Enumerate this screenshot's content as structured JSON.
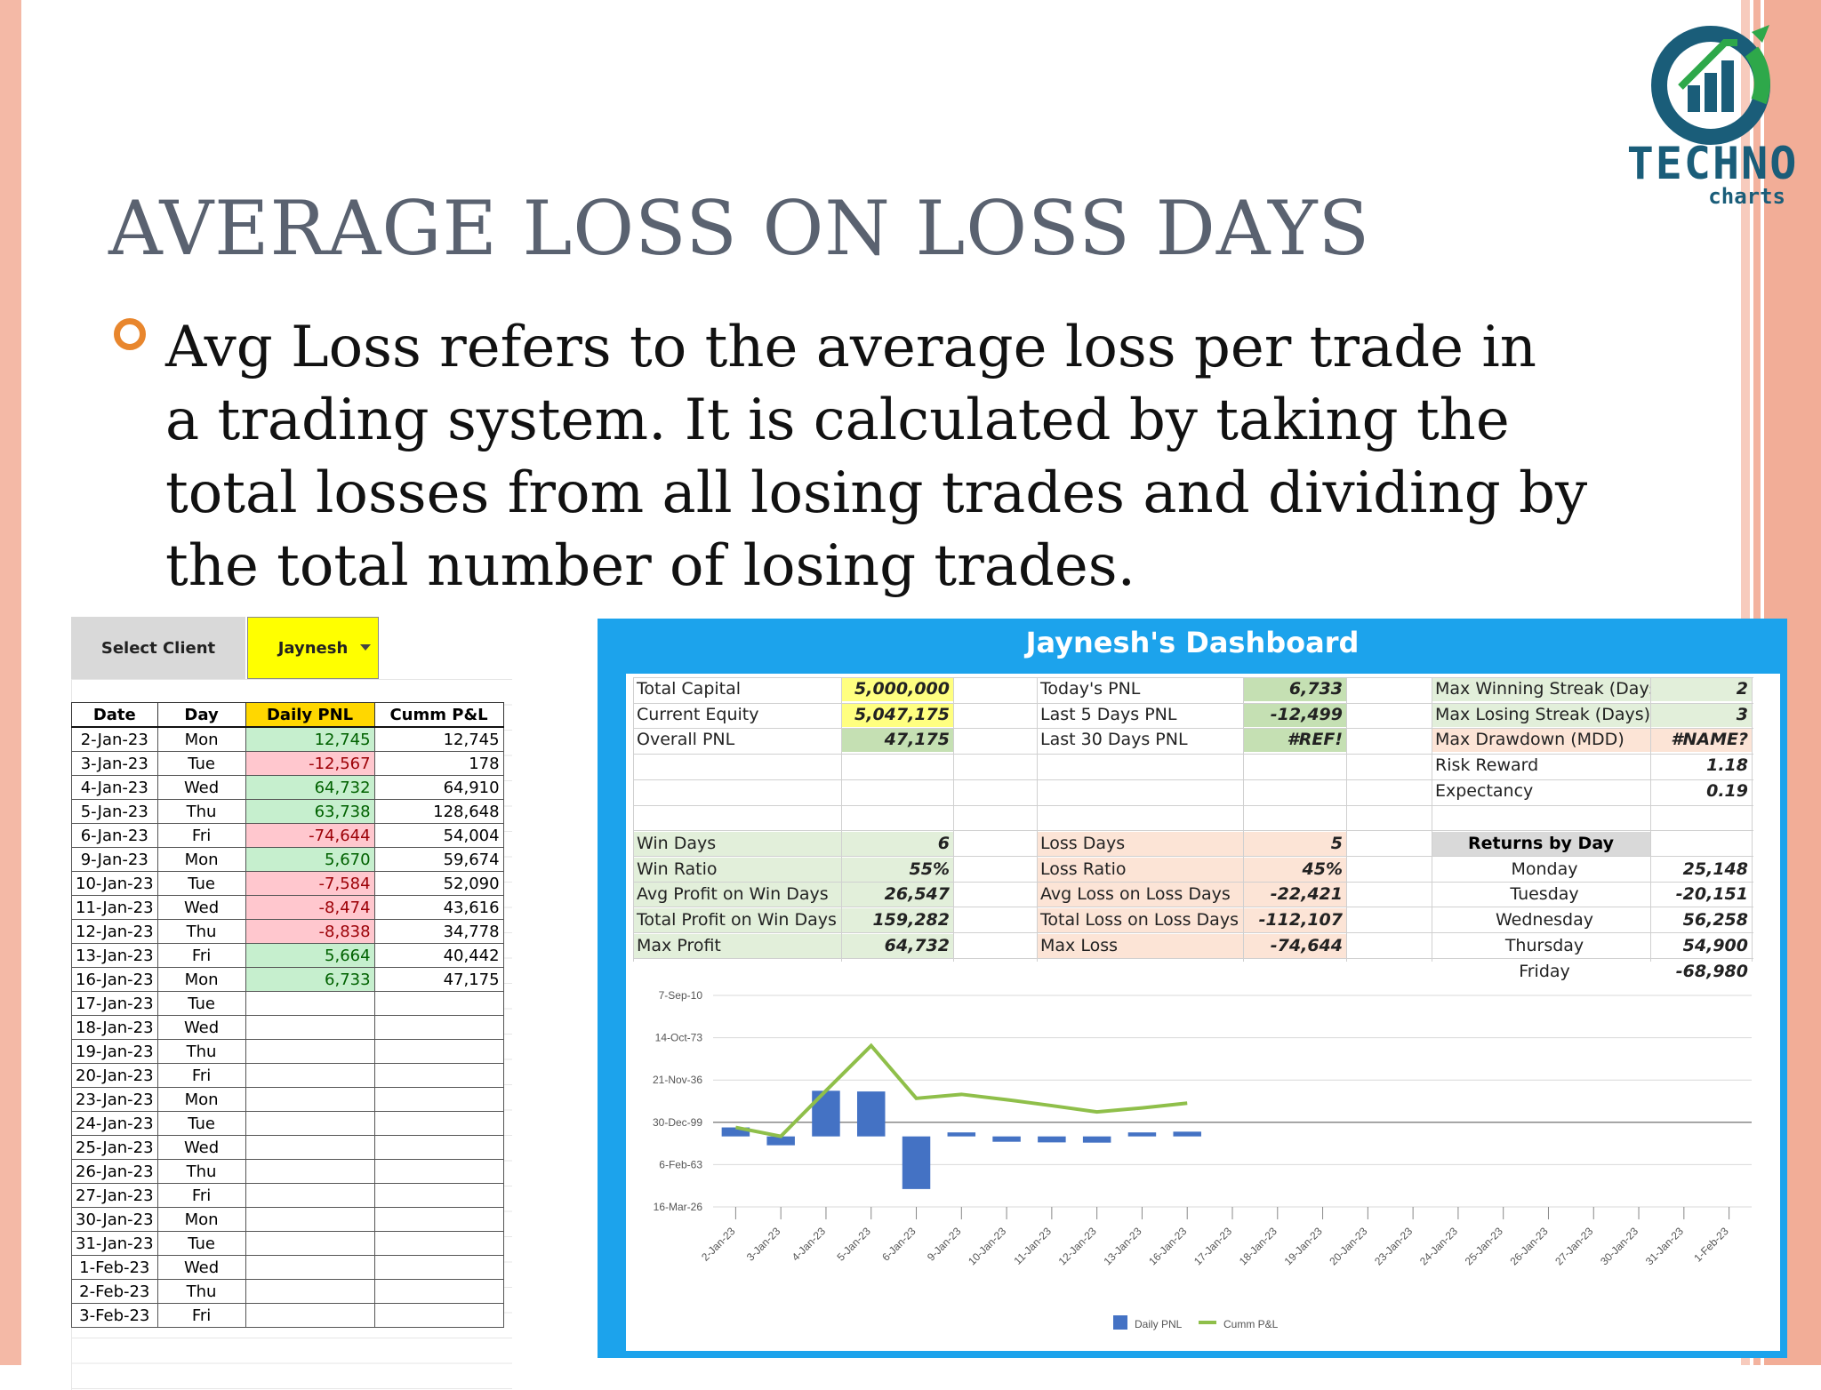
{
  "slide": {
    "title": "AVERAGE LOSS ON LOSS DAYS",
    "body": "Avg Loss refers to the average loss per trade in a trading system. It is calculated by taking the total losses from all losing trades and dividing by the total number of losing trades."
  },
  "logo": {
    "main": "TECHNO",
    "sub": "charts"
  },
  "sheet": {
    "select_label": "Select Client",
    "select_value": "Jaynesh",
    "headers": [
      "Date",
      "Day",
      "Daily PNL",
      "Cumm P&L"
    ],
    "rows": [
      {
        "date": "2-Jan-23",
        "day": "Mon",
        "pnl": "12,745",
        "cum": "12,745",
        "sign": "pos"
      },
      {
        "date": "3-Jan-23",
        "day": "Tue",
        "pnl": "-12,567",
        "cum": "178",
        "sign": "neg"
      },
      {
        "date": "4-Jan-23",
        "day": "Wed",
        "pnl": "64,732",
        "cum": "64,910",
        "sign": "pos"
      },
      {
        "date": "5-Jan-23",
        "day": "Thu",
        "pnl": "63,738",
        "cum": "128,648",
        "sign": "pos"
      },
      {
        "date": "6-Jan-23",
        "day": "Fri",
        "pnl": "-74,644",
        "cum": "54,004",
        "sign": "neg"
      },
      {
        "date": "9-Jan-23",
        "day": "Mon",
        "pnl": "5,670",
        "cum": "59,674",
        "sign": "pos"
      },
      {
        "date": "10-Jan-23",
        "day": "Tue",
        "pnl": "-7,584",
        "cum": "52,090",
        "sign": "neg"
      },
      {
        "date": "11-Jan-23",
        "day": "Wed",
        "pnl": "-8,474",
        "cum": "43,616",
        "sign": "neg"
      },
      {
        "date": "12-Jan-23",
        "day": "Thu",
        "pnl": "-8,838",
        "cum": "34,778",
        "sign": "neg"
      },
      {
        "date": "13-Jan-23",
        "day": "Fri",
        "pnl": "5,664",
        "cum": "40,442",
        "sign": "pos"
      },
      {
        "date": "16-Jan-23",
        "day": "Mon",
        "pnl": "6,733",
        "cum": "47,175",
        "sign": "pos"
      },
      {
        "date": "17-Jan-23",
        "day": "Tue",
        "pnl": "",
        "cum": "",
        "sign": ""
      },
      {
        "date": "18-Jan-23",
        "day": "Wed",
        "pnl": "",
        "cum": "",
        "sign": ""
      },
      {
        "date": "19-Jan-23",
        "day": "Thu",
        "pnl": "",
        "cum": "",
        "sign": ""
      },
      {
        "date": "20-Jan-23",
        "day": "Fri",
        "pnl": "",
        "cum": "",
        "sign": ""
      },
      {
        "date": "23-Jan-23",
        "day": "Mon",
        "pnl": "",
        "cum": "",
        "sign": ""
      },
      {
        "date": "24-Jan-23",
        "day": "Tue",
        "pnl": "",
        "cum": "",
        "sign": ""
      },
      {
        "date": "25-Jan-23",
        "day": "Wed",
        "pnl": "",
        "cum": "",
        "sign": ""
      },
      {
        "date": "26-Jan-23",
        "day": "Thu",
        "pnl": "",
        "cum": "",
        "sign": ""
      },
      {
        "date": "27-Jan-23",
        "day": "Fri",
        "pnl": "",
        "cum": "",
        "sign": ""
      },
      {
        "date": "30-Jan-23",
        "day": "Mon",
        "pnl": "",
        "cum": "",
        "sign": ""
      },
      {
        "date": "31-Jan-23",
        "day": "Tue",
        "pnl": "",
        "cum": "",
        "sign": ""
      },
      {
        "date": "1-Feb-23",
        "day": "Wed",
        "pnl": "",
        "cum": "",
        "sign": ""
      },
      {
        "date": "2-Feb-23",
        "day": "Thu",
        "pnl": "",
        "cum": "",
        "sign": ""
      },
      {
        "date": "3-Feb-23",
        "day": "Fri",
        "pnl": "",
        "cum": "",
        "sign": ""
      }
    ]
  },
  "dashboard": {
    "title": "Jaynesh's Dashboard",
    "col1": [
      {
        "k": "Total Capital",
        "v": "5,000,000",
        "bg": "yellow"
      },
      {
        "k": "Current Equity",
        "v": "5,047,175",
        "bg": "yellow"
      },
      {
        "k": "Overall PNL",
        "v": "47,175",
        "bg": "green"
      }
    ],
    "col1b": [
      {
        "k": "Win Days",
        "v": "6"
      },
      {
        "k": "Win Ratio",
        "v": "55%"
      },
      {
        "k": "Avg Profit on Win Days",
        "v": "26,547"
      },
      {
        "k": "Total Profit on Win Days",
        "v": "159,282"
      },
      {
        "k": "Max Profit",
        "v": "64,732"
      }
    ],
    "col2": [
      {
        "k": "Today's PNL",
        "v": "6,733",
        "bg": "green"
      },
      {
        "k": "Last 5 Days PNL",
        "v": "-12,499",
        "bg": "green"
      },
      {
        "k": "Last 30 Days PNL",
        "v": "#REF!",
        "bg": "green"
      }
    ],
    "col2b": [
      {
        "k": "Loss Days",
        "v": "5"
      },
      {
        "k": "Loss Ratio",
        "v": "45%"
      },
      {
        "k": "Avg Loss on Loss Days",
        "v": "-22,421"
      },
      {
        "k": "Total Loss on Loss Days",
        "v": "-112,107"
      },
      {
        "k": "Max Loss",
        "v": "-74,644"
      }
    ],
    "col3": [
      {
        "k": "Max Winning Streak (Days)",
        "v": "2",
        "bg": "lgreen"
      },
      {
        "k": "Max Losing Streak (Days)",
        "v": "3",
        "bg": "lgreen"
      },
      {
        "k": "Max Drawdown (MDD)",
        "v": "#NAME?",
        "bg": "peach"
      },
      {
        "k": "Risk Reward",
        "v": "1.18",
        "bg": ""
      },
      {
        "k": "Expectancy",
        "v": "0.19",
        "bg": ""
      }
    ],
    "returns_header": "Returns by Day",
    "returns": [
      {
        "k": "Monday",
        "v": "25,148"
      },
      {
        "k": "Tuesday",
        "v": "-20,151"
      },
      {
        "k": "Wednesday",
        "v": "56,258"
      },
      {
        "k": "Thursday",
        "v": "54,900"
      },
      {
        "k": "Friday",
        "v": "-68,980"
      }
    ]
  },
  "chart_data": {
    "type": "bar",
    "title": "",
    "y_tick_labels": [
      "7-Sep-10",
      "14-Oct-73",
      "21-Nov-36",
      "30-Dec-99",
      "6-Feb-63",
      "16-Mar-26"
    ],
    "ylim": [
      -100000,
      200000
    ],
    "categories": [
      "2-Jan-23",
      "3-Jan-23",
      "4-Jan-23",
      "5-Jan-23",
      "6-Jan-23",
      "9-Jan-23",
      "10-Jan-23",
      "11-Jan-23",
      "12-Jan-23",
      "13-Jan-23",
      "16-Jan-23",
      "17-Jan-23",
      "18-Jan-23",
      "19-Jan-23",
      "20-Jan-23",
      "23-Jan-23",
      "24-Jan-23",
      "25-Jan-23",
      "26-Jan-23",
      "27-Jan-23",
      "30-Jan-23",
      "31-Jan-23",
      "1-Feb-23"
    ],
    "series": [
      {
        "name": "Daily PNL",
        "type": "bar",
        "color": "#4472c4",
        "values": [
          12745,
          -12567,
          64732,
          63738,
          -74644,
          5670,
          -7584,
          -8474,
          -8838,
          5664,
          6733,
          null,
          null,
          null,
          null,
          null,
          null,
          null,
          null,
          null,
          null,
          null,
          null
        ]
      },
      {
        "name": "Cumm P&L",
        "type": "line",
        "color": "#8fbf4a",
        "values": [
          12745,
          178,
          64910,
          128648,
          54004,
          59674,
          52090,
          43616,
          34778,
          40442,
          47175,
          null,
          null,
          null,
          null,
          null,
          null,
          null,
          null,
          null,
          null,
          null,
          null
        ]
      }
    ]
  }
}
